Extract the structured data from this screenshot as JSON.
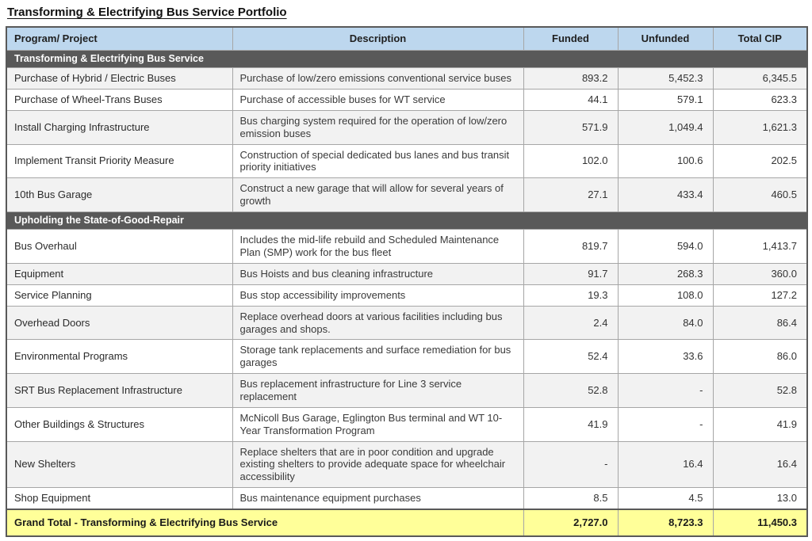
{
  "page_title": "Transforming & Electrifying Bus Service Portfolio",
  "colors": {
    "header_bg": "#BDD7EE",
    "section_bg": "#595959",
    "total_bg": "#FFFF99",
    "stripe_bg": "#F2F2F2",
    "grid_border": "#A6A6A6",
    "outer_border": "#595959"
  },
  "table": {
    "columns": [
      "Program/ Project",
      "Description",
      "Funded",
      "Unfunded",
      "Total CIP"
    ],
    "sections": [
      {
        "header": "Transforming & Electrifying Bus Service",
        "rows": [
          {
            "program": "Purchase of Hybrid / Electric Buses",
            "description": "Purchase of low/zero emissions conventional service buses",
            "funded": "893.2",
            "unfunded": "5,452.3",
            "total": "6,345.5"
          },
          {
            "program": "Purchase of Wheel-Trans Buses",
            "description": "Purchase of accessible buses for WT service",
            "funded": "44.1",
            "unfunded": "579.1",
            "total": "623.3"
          },
          {
            "program": "Install Charging Infrastructure",
            "description": "Bus charging system required for the operation of low/zero emission buses",
            "funded": "571.9",
            "unfunded": "1,049.4",
            "total": "1,621.3"
          },
          {
            "program": "Implement Transit Priority Measure",
            "description": "Construction of special dedicated bus lanes and bus transit priority initiatives",
            "funded": "102.0",
            "unfunded": "100.6",
            "total": "202.5"
          },
          {
            "program": "10th Bus Garage",
            "description": "Construct a new garage that will allow for several years of growth",
            "funded": "27.1",
            "unfunded": "433.4",
            "total": "460.5"
          }
        ]
      },
      {
        "header": "Upholding the State-of-Good-Repair",
        "rows": [
          {
            "program": "Bus Overhaul",
            "description": "Includes the mid-life rebuild and Scheduled Maintenance Plan (SMP) work for the bus fleet",
            "funded": "819.7",
            "unfunded": "594.0",
            "total": "1,413.7"
          },
          {
            "program": "Equipment",
            "description": "Bus Hoists and bus cleaning infrastructure",
            "funded": "91.7",
            "unfunded": "268.3",
            "total": "360.0"
          },
          {
            "program": "Service Planning",
            "description": "Bus stop accessibility improvements",
            "funded": "19.3",
            "unfunded": "108.0",
            "total": "127.2"
          },
          {
            "program": "Overhead Doors",
            "description": "Replace overhead doors at various facilities including bus garages and shops.",
            "funded": "2.4",
            "unfunded": "84.0",
            "total": "86.4"
          },
          {
            "program": "Environmental Programs",
            "description": "Storage tank replacements and surface remediation for bus garages",
            "funded": "52.4",
            "unfunded": "33.6",
            "total": "86.0"
          },
          {
            "program": "SRT Bus Replacement Infrastructure",
            "description": "Bus replacement infrastructure for Line 3 service replacement",
            "funded": "52.8",
            "unfunded": "-",
            "total": "52.8"
          },
          {
            "program": "Other Buildings & Structures",
            "description": "McNicoll Bus Garage, Eglington Bus terminal and WT 10-Year Transformation Program",
            "funded": "41.9",
            "unfunded": "-",
            "total": "41.9"
          },
          {
            "program": "New Shelters",
            "description": "Replace shelters that are in poor condition and upgrade existing shelters to provide adequate space for wheelchair accessibility",
            "funded": "-",
            "unfunded": "16.4",
            "total": "16.4"
          },
          {
            "program": "Shop Equipment",
            "description": "Bus maintenance equipment purchases",
            "funded": "8.5",
            "unfunded": "4.5",
            "total": "13.0"
          }
        ]
      }
    ],
    "grand_total": {
      "label": "Grand Total - Transforming & Electrifying Bus Service",
      "funded": "2,727.0",
      "unfunded": "8,723.3",
      "total": "11,450.3"
    }
  }
}
